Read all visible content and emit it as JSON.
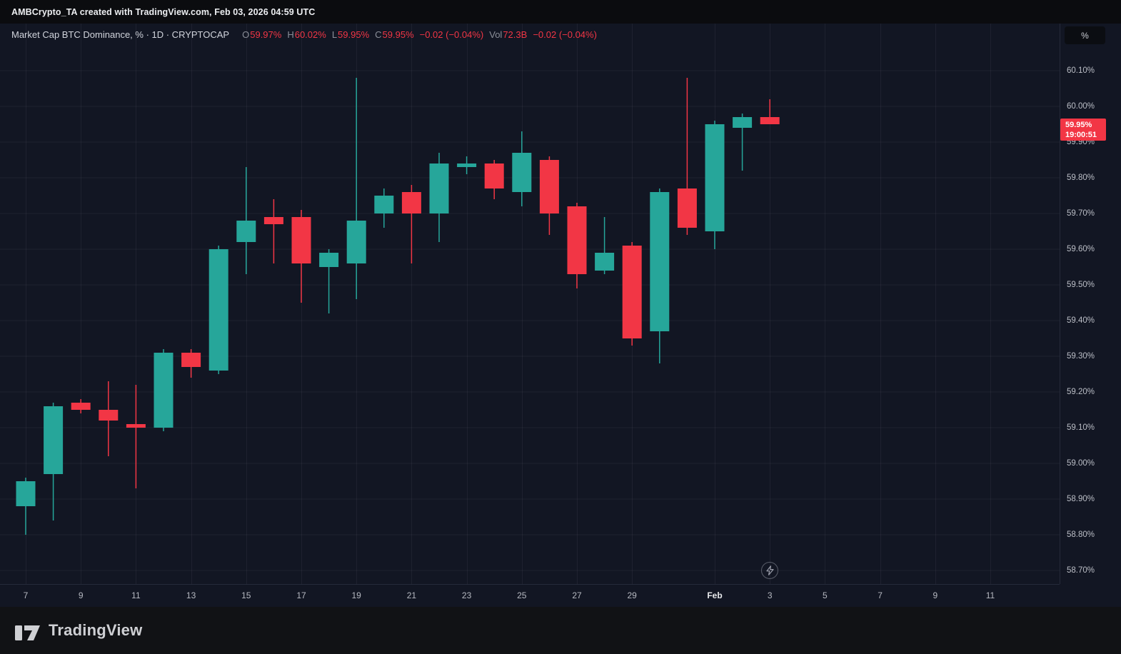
{
  "top_bar": {
    "attribution": "AMBCrypto_TA created with TradingView.com, Feb 03, 2026 04:59 UTC"
  },
  "legend": {
    "title": "Market Cap BTC Dominance, % · 1D · CRYPTOCAP",
    "o_label": "O",
    "o_value": "59.97%",
    "h_label": "H",
    "h_value": "60.02%",
    "l_label": "L",
    "l_value": "59.95%",
    "c_label": "C",
    "c_value": "59.95%",
    "change": "−0.02 (−0.04%)",
    "vol_label": "Vol",
    "vol_value": "72.3B",
    "vol_change": "−0.02 (−0.04%)"
  },
  "price_axis": {
    "unit_button_label": "%",
    "labels": [
      {
        "text": "60.10%",
        "value": 60.1
      },
      {
        "text": "60.00%",
        "value": 60.0
      },
      {
        "text": "59.90%",
        "value": 59.9
      },
      {
        "text": "59.80%",
        "value": 59.8
      },
      {
        "text": "59.70%",
        "value": 59.7
      },
      {
        "text": "59.60%",
        "value": 59.6
      },
      {
        "text": "59.50%",
        "value": 59.5
      },
      {
        "text": "59.40%",
        "value": 59.4
      },
      {
        "text": "59.30%",
        "value": 59.3
      },
      {
        "text": "59.20%",
        "value": 59.2
      },
      {
        "text": "59.10%",
        "value": 59.1
      },
      {
        "text": "59.00%",
        "value": 59.0
      },
      {
        "text": "58.90%",
        "value": 58.9
      },
      {
        "text": "58.80%",
        "value": 58.8
      },
      {
        "text": "58.70%",
        "value": 58.7
      }
    ],
    "last_price_badge": {
      "price": "59.95%",
      "countdown": "19:00:51",
      "value": 59.95,
      "color": "#f23645"
    }
  },
  "time_axis": {
    "labels": [
      {
        "text": "7",
        "index": 0
      },
      {
        "text": "9",
        "index": 2
      },
      {
        "text": "11",
        "index": 4
      },
      {
        "text": "13",
        "index": 6
      },
      {
        "text": "15",
        "index": 8
      },
      {
        "text": "17",
        "index": 10
      },
      {
        "text": "19",
        "index": 12
      },
      {
        "text": "21",
        "index": 14
      },
      {
        "text": "23",
        "index": 16
      },
      {
        "text": "25",
        "index": 18
      },
      {
        "text": "27",
        "index": 20
      },
      {
        "text": "29",
        "index": 22
      },
      {
        "text": "Feb",
        "index": 25,
        "emphasis": true
      },
      {
        "text": "3",
        "index": 27
      },
      {
        "text": "5",
        "index": 29
      },
      {
        "text": "7",
        "index": 31
      },
      {
        "text": "9",
        "index": 33
      },
      {
        "text": "11",
        "index": 35
      }
    ]
  },
  "footer": {
    "brand": "TradingView"
  },
  "colors": {
    "up": "#26a69a",
    "down": "#f23645",
    "background": "#121623",
    "grid": "rgba(240,243,250,0.055)",
    "axis_text": "#bcbfc7"
  },
  "chart_data": {
    "type": "candlestick",
    "title": "Market Cap BTC Dominance",
    "symbol": "CRYPTOCAP",
    "interval": "1D",
    "unit": "%",
    "ylim": [
      58.66,
      60.23
    ],
    "grid": true,
    "candles": [
      {
        "date": "Jan 7",
        "o": 58.88,
        "h": 58.96,
        "l": 58.8,
        "c": 58.95
      },
      {
        "date": "Jan 8",
        "o": 58.97,
        "h": 59.17,
        "l": 58.84,
        "c": 59.16
      },
      {
        "date": "Jan 9",
        "o": 59.17,
        "h": 59.18,
        "l": 59.14,
        "c": 59.15
      },
      {
        "date": "Jan 10",
        "o": 59.15,
        "h": 59.23,
        "l": 59.02,
        "c": 59.12
      },
      {
        "date": "Jan 11",
        "o": 59.11,
        "h": 59.22,
        "l": 58.93,
        "c": 59.1
      },
      {
        "date": "Jan 12",
        "o": 59.1,
        "h": 59.32,
        "l": 59.09,
        "c": 59.31
      },
      {
        "date": "Jan 13",
        "o": 59.31,
        "h": 59.32,
        "l": 59.24,
        "c": 59.27
      },
      {
        "date": "Jan 14",
        "o": 59.26,
        "h": 59.61,
        "l": 59.25,
        "c": 59.6
      },
      {
        "date": "Jan 15",
        "o": 59.62,
        "h": 59.83,
        "l": 59.53,
        "c": 59.68
      },
      {
        "date": "Jan 16",
        "o": 59.69,
        "h": 59.74,
        "l": 59.56,
        "c": 59.67
      },
      {
        "date": "Jan 17",
        "o": 59.69,
        "h": 59.71,
        "l": 59.45,
        "c": 59.56
      },
      {
        "date": "Jan 18",
        "o": 59.55,
        "h": 59.6,
        "l": 59.42,
        "c": 59.59
      },
      {
        "date": "Jan 19",
        "o": 59.56,
        "h": 60.08,
        "l": 59.46,
        "c": 59.68
      },
      {
        "date": "Jan 20",
        "o": 59.7,
        "h": 59.77,
        "l": 59.66,
        "c": 59.75
      },
      {
        "date": "Jan 21",
        "o": 59.76,
        "h": 59.78,
        "l": 59.56,
        "c": 59.7
      },
      {
        "date": "Jan 22",
        "o": 59.7,
        "h": 59.87,
        "l": 59.62,
        "c": 59.84
      },
      {
        "date": "Jan 23",
        "o": 59.83,
        "h": 59.86,
        "l": 59.81,
        "c": 59.84
      },
      {
        "date": "Jan 24",
        "o": 59.84,
        "h": 59.85,
        "l": 59.74,
        "c": 59.77
      },
      {
        "date": "Jan 25",
        "o": 59.76,
        "h": 59.93,
        "l": 59.72,
        "c": 59.87
      },
      {
        "date": "Jan 26",
        "o": 59.85,
        "h": 59.86,
        "l": 59.64,
        "c": 59.7
      },
      {
        "date": "Jan 27",
        "o": 59.72,
        "h": 59.73,
        "l": 59.49,
        "c": 59.53
      },
      {
        "date": "Jan 28",
        "o": 59.54,
        "h": 59.69,
        "l": 59.53,
        "c": 59.59
      },
      {
        "date": "Jan 29",
        "o": 59.61,
        "h": 59.62,
        "l": 59.33,
        "c": 59.35
      },
      {
        "date": "Jan 30",
        "o": 59.37,
        "h": 59.77,
        "l": 59.28,
        "c": 59.76
      },
      {
        "date": "Jan 31",
        "o": 59.77,
        "h": 60.08,
        "l": 59.64,
        "c": 59.66
      },
      {
        "date": "Feb 1",
        "o": 59.65,
        "h": 59.96,
        "l": 59.6,
        "c": 59.95
      },
      {
        "date": "Feb 2",
        "o": 59.94,
        "h": 59.98,
        "l": 59.82,
        "c": 59.97
      },
      {
        "date": "Feb 3",
        "o": 59.97,
        "h": 60.02,
        "l": 59.95,
        "c": 59.95
      }
    ]
  }
}
